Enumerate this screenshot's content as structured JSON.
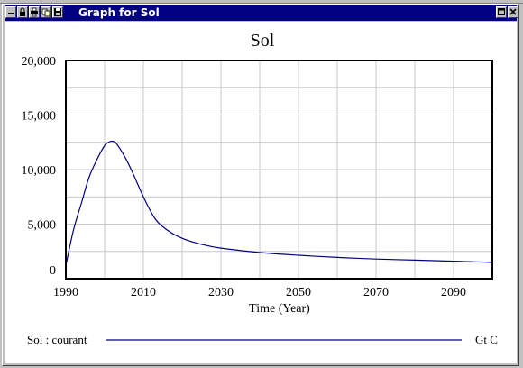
{
  "window": {
    "title": "Graph for Sol",
    "toolbar_icons": [
      "collapse-icon",
      "lock-icon",
      "print-icon",
      "copy-icon",
      "save-icon"
    ],
    "controls": [
      "restore-icon",
      "close-icon"
    ]
  },
  "colors": {
    "titlebar": "#000080",
    "series": "#000080",
    "grid": "#c8c8c8",
    "window": "#c0c0c0"
  },
  "chart_data": {
    "type": "line",
    "title": "Sol",
    "xlabel": "Time (Year)",
    "ylabel": "",
    "xlim": [
      1990,
      2100
    ],
    "ylim": [
      0,
      20000
    ],
    "x_ticks": [
      1990,
      2010,
      2030,
      2050,
      2070,
      2090
    ],
    "x_tick_labels": [
      "1990",
      "2010",
      "2030",
      "2050",
      "2070",
      "2090"
    ],
    "y_ticks": [
      0,
      5000,
      10000,
      15000,
      20000
    ],
    "y_tick_labels": [
      "0",
      "5,000",
      "10,000",
      "15,000",
      "20,000"
    ],
    "grid": true,
    "series": [
      {
        "name": "Sol : courant",
        "unit": "Gt C",
        "x": [
          1990,
          1992,
          1994,
          1996,
          1998,
          2000,
          2001,
          2002,
          2003,
          2005,
          2007,
          2010,
          2013,
          2016,
          2020,
          2025,
          2030,
          2040,
          2050,
          2060,
          2070,
          2080,
          2090,
          2100
        ],
        "values": [
          1200,
          4500,
          6900,
          9300,
          10900,
          12200,
          12500,
          12600,
          12400,
          11300,
          9900,
          7500,
          5500,
          4500,
          3700,
          3150,
          2800,
          2400,
          2150,
          1950,
          1800,
          1700,
          1600,
          1500
        ]
      }
    ]
  }
}
